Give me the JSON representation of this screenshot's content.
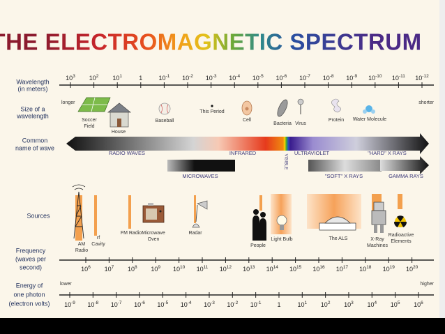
{
  "title": "THE ELECTROMAGNETIC SPECTRUM",
  "wavelength": {
    "label": [
      "Wavelength",
      "(in meters)"
    ],
    "ticks": [
      {
        "base": "10",
        "exponent": "3"
      },
      {
        "base": "10",
        "exponent": "2"
      },
      {
        "base": "10",
        "exponent": "1"
      },
      {
        "base": "1"
      },
      {
        "base": "10",
        "exponent": "-1"
      },
      {
        "base": "10",
        "exponent": "-2"
      },
      {
        "base": "10",
        "exponent": "-3"
      },
      {
        "base": "10",
        "exponent": "-4"
      },
      {
        "base": "10",
        "exponent": "-5"
      },
      {
        "base": "10",
        "exponent": "-6"
      },
      {
        "base": "10",
        "exponent": "-7"
      },
      {
        "base": "10",
        "exponent": "-8"
      },
      {
        "base": "10",
        "exponent": "-9"
      },
      {
        "base": "10",
        "exponent": "-10"
      },
      {
        "base": "10",
        "exponent": "-11"
      },
      {
        "base": "10",
        "exponent": "-12"
      }
    ]
  },
  "size": {
    "label": [
      "Size of a",
      "wavelength"
    ],
    "longer": "longer",
    "shorter": "shorter",
    "items": [
      [
        "Soccer",
        "Field"
      ],
      [
        "House"
      ],
      [
        "Baseball"
      ],
      [
        "This Period"
      ],
      [
        "Cell"
      ],
      [
        "Bacteria"
      ],
      [
        "Virus"
      ],
      [
        "Protein"
      ],
      [
        "Water Molecule"
      ]
    ]
  },
  "wave_names": {
    "label": [
      "Common",
      "name of wave"
    ],
    "names": [
      "RADIO WAVES",
      "INFRARED",
      "VISIBLE",
      "ULTRAVIOLET",
      "\"HARD\" X RAYS",
      "MICROWAVES",
      "\"SOFT\" X RAYS",
      "GAMMA RAYS"
    ]
  },
  "sources": {
    "label": "Sources",
    "items": [
      [
        "AM",
        "Radio"
      ],
      [
        "rf",
        "Cavity"
      ],
      [
        "FM Radio"
      ],
      [
        "Microwave",
        "Oven"
      ],
      [
        "Radar"
      ],
      [
        "People"
      ],
      [
        "Light Bulb"
      ],
      [
        "The ALS"
      ],
      [
        "X-Ray",
        "Machines"
      ],
      [
        "Radioactive",
        "Elements"
      ]
    ]
  },
  "frequency": {
    "label": [
      "Frequency",
      "(waves per",
      "second)"
    ],
    "ticks": [
      {
        "base": "10",
        "exponent": "6"
      },
      {
        "base": "10",
        "exponent": "7"
      },
      {
        "base": "10",
        "exponent": "8"
      },
      {
        "base": "10",
        "exponent": "9"
      },
      {
        "base": "10",
        "exponent": "10"
      },
      {
        "base": "10",
        "exponent": "11"
      },
      {
        "base": "10",
        "exponent": "12"
      },
      {
        "base": "10",
        "exponent": "13"
      },
      {
        "base": "10",
        "exponent": "14"
      },
      {
        "base": "10",
        "exponent": "15"
      },
      {
        "base": "10",
        "exponent": "16"
      },
      {
        "base": "10",
        "exponent": "17"
      },
      {
        "base": "10",
        "exponent": "18"
      },
      {
        "base": "10",
        "exponent": "19"
      },
      {
        "base": "10",
        "exponent": "20"
      }
    ]
  },
  "energy": {
    "label": [
      "Energy of",
      "one photon",
      "(electron volts)"
    ],
    "lower": "lower",
    "higher": "higher",
    "ticks": [
      {
        "base": "10",
        "exponent": "-9"
      },
      {
        "base": "10",
        "exponent": "-8"
      },
      {
        "base": "10",
        "exponent": "-7"
      },
      {
        "base": "10",
        "exponent": "-6"
      },
      {
        "base": "10",
        "exponent": "-5"
      },
      {
        "base": "10",
        "exponent": "-4"
      },
      {
        "base": "10",
        "exponent": "-3"
      },
      {
        "base": "10",
        "exponent": "-2"
      },
      {
        "base": "10",
        "exponent": "-1"
      },
      {
        "base": "1"
      },
      {
        "base": "10",
        "exponent": "1"
      },
      {
        "base": "10",
        "exponent": "2"
      },
      {
        "base": "10",
        "exponent": "3"
      },
      {
        "base": "10",
        "exponent": "4"
      },
      {
        "base": "10",
        "exponent": "5"
      },
      {
        "base": "10",
        "exponent": "6"
      }
    ]
  }
}
